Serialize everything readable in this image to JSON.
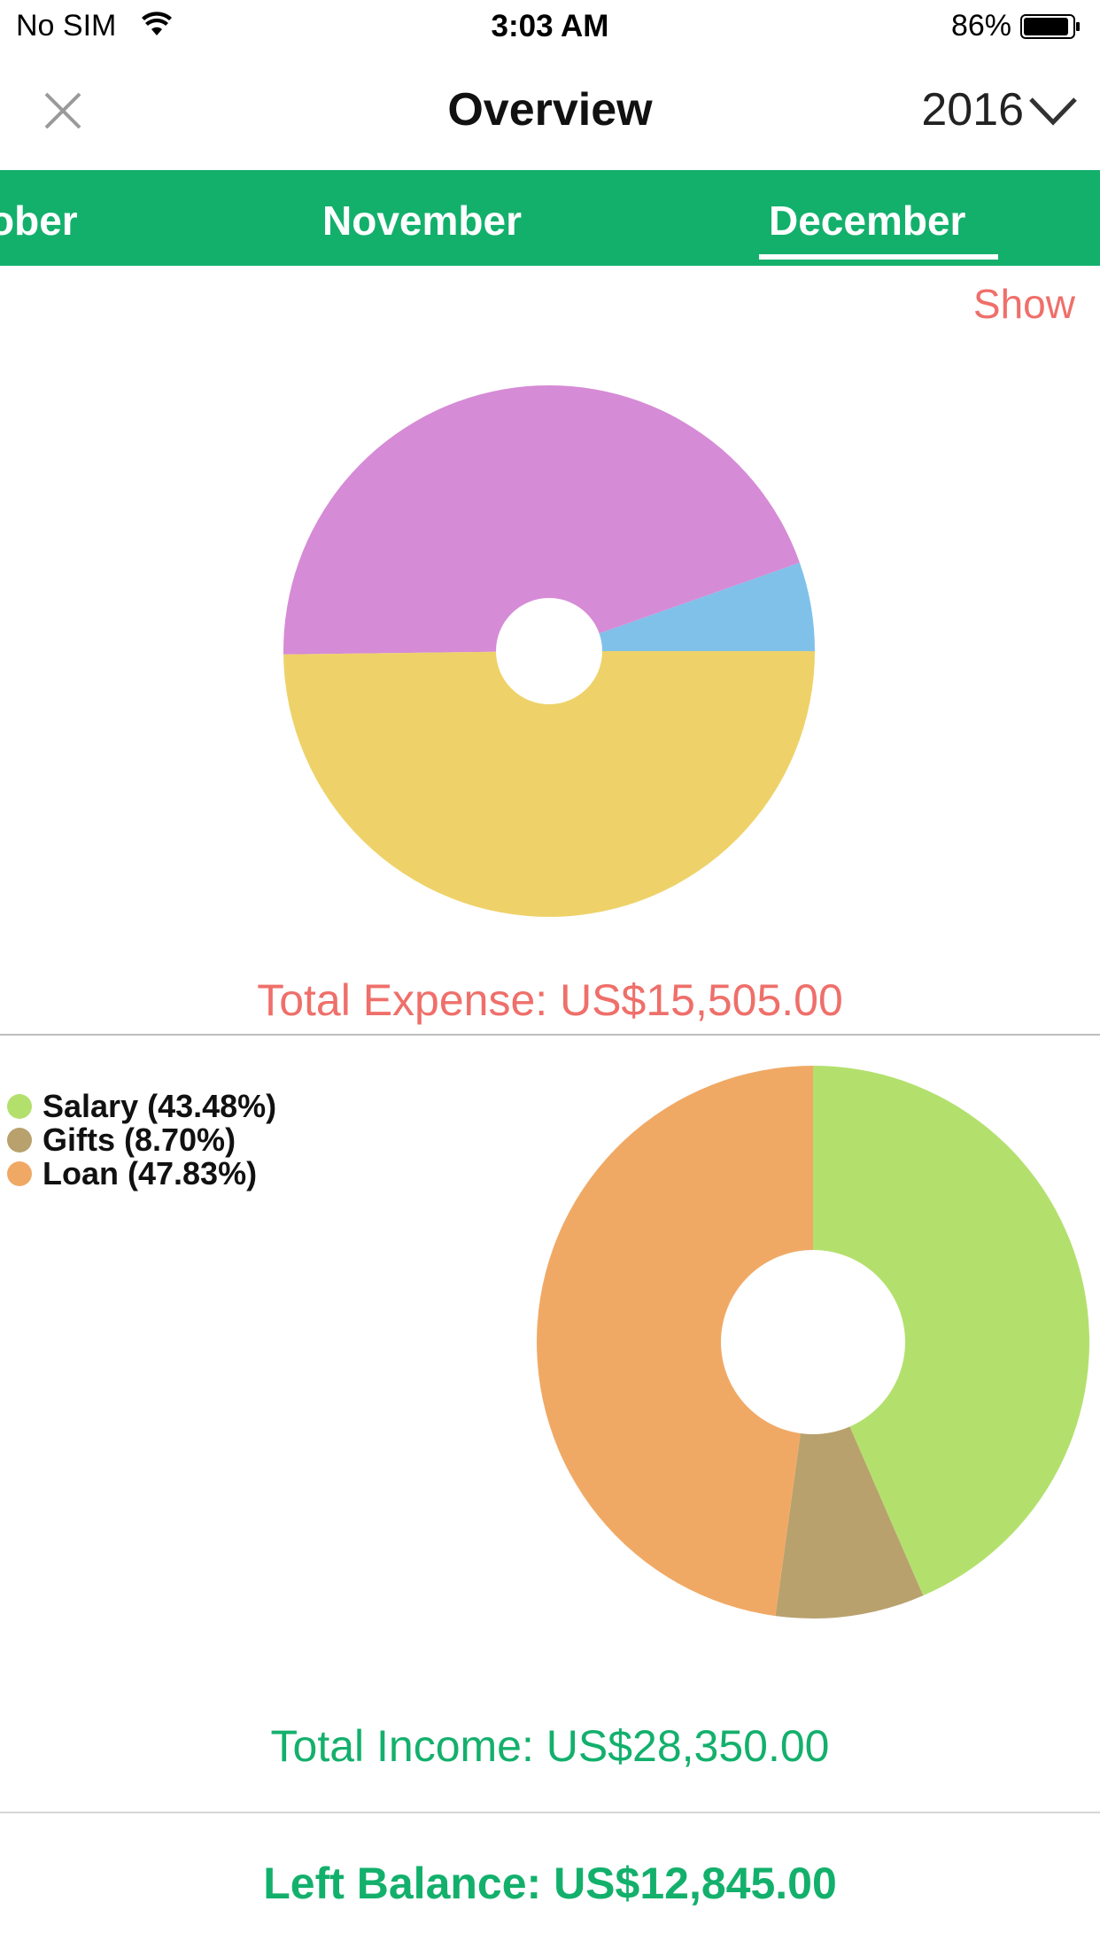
{
  "status_bar": {
    "carrier": "No SIM",
    "time": "3:03 AM",
    "battery": "86%"
  },
  "nav": {
    "title": "Overview",
    "year": "2016",
    "close_icon": "close-icon",
    "dropdown_icon": "chevron-down-icon"
  },
  "months": {
    "prev": "ober",
    "current_prev": "November",
    "selected": "December"
  },
  "show_label": "Show",
  "expense": {
    "total_label": "Total Expense: US$15,505.00"
  },
  "income": {
    "total_label": "Total Income: US$28,350.00",
    "legend": [
      {
        "label": "Salary (43.48%)",
        "color": "#b3e06d"
      },
      {
        "label": "Gifts (8.70%)",
        "color": "#b8a16d"
      },
      {
        "label": "Loan (47.83%)",
        "color": "#f0a965"
      }
    ]
  },
  "balance_label": "Left Balance: US$12,845.00",
  "colors": {
    "brand_green": "#13b06c",
    "expense_red": "#ef6f6a"
  },
  "chart_data": [
    {
      "type": "pie",
      "values": [
        5.4,
        44.8,
        49.8
      ],
      "colors": [
        "#80c1ea",
        "#d68bd6",
        "#eed269"
      ],
      "start": "3 o'clock, counter-clockwise"
    },
    {
      "type": "pie",
      "categories": [
        "Salary",
        "Gifts",
        "Loan"
      ],
      "values": [
        43.48,
        8.7,
        47.83
      ],
      "colors": [
        "#b3e06d",
        "#b8a16d",
        "#f0a965"
      ],
      "start": "12 o'clock, clockwise"
    }
  ]
}
